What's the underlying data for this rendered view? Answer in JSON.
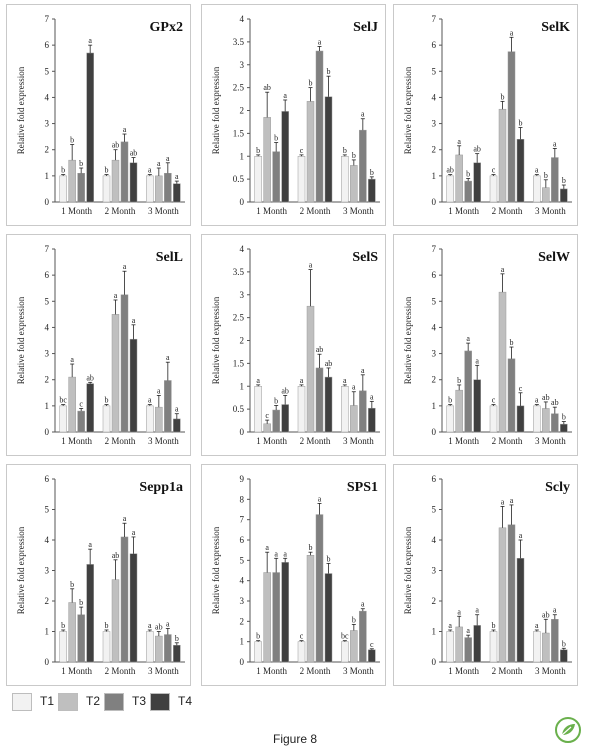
{
  "figure_caption": "Figure 8",
  "colors": {
    "T1": "#f2f2f2",
    "T2": "#bfbfbf",
    "T3": "#808080",
    "T4": "#404040",
    "axis": "#555555",
    "logo": "#6ab04c"
  },
  "legend": [
    {
      "label": "T1",
      "color": "#f2f2f2"
    },
    {
      "label": "T2",
      "color": "#bfbfbf"
    },
    {
      "label": "T3",
      "color": "#808080"
    },
    {
      "label": "T4",
      "color": "#404040"
    }
  ],
  "logo_icon": "leaf-logo-icon",
  "chart_data": [
    {
      "type": "bar",
      "title": "GPx2",
      "ylabel": "Relative fold expression",
      "categories": [
        "1 Month",
        "2 Month",
        "3 Month"
      ],
      "ylim": [
        0,
        7
      ],
      "yticks": [
        0,
        1,
        2,
        3,
        4,
        5,
        6,
        7
      ],
      "series": [
        {
          "name": "T1",
          "values": [
            1,
            1,
            1
          ],
          "errors": [
            0.05,
            0.05,
            0.05
          ],
          "letters": [
            "b",
            "b",
            "a"
          ]
        },
        {
          "name": "T2",
          "values": [
            1.6,
            1.6,
            1.0
          ],
          "errors": [
            0.6,
            0.4,
            0.3
          ],
          "letters": [
            "b",
            "ab",
            "a"
          ]
        },
        {
          "name": "T3",
          "values": [
            1.1,
            2.3,
            1.1
          ],
          "errors": [
            0.2,
            0.3,
            0.4
          ],
          "letters": [
            "b",
            "a",
            "a"
          ]
        },
        {
          "name": "T4",
          "values": [
            5.7,
            1.5,
            0.7
          ],
          "errors": [
            0.3,
            0.2,
            0.1
          ],
          "letters": [
            "a",
            "ab",
            "a"
          ]
        }
      ]
    },
    {
      "type": "bar",
      "title": "SelJ",
      "ylabel": "Relative fold expression",
      "categories": [
        "1 Month",
        "2 Month",
        "3 Month"
      ],
      "ylim": [
        0,
        4
      ],
      "yticks": [
        0,
        0.5,
        1,
        1.5,
        2,
        2.5,
        3,
        3.5,
        4
      ],
      "series": [
        {
          "name": "T1",
          "values": [
            1,
            1,
            1
          ],
          "errors": [
            0.03,
            0.03,
            0.03
          ],
          "letters": [
            "b",
            "c",
            "b"
          ]
        },
        {
          "name": "T2",
          "values": [
            1.85,
            2.2,
            0.8
          ],
          "errors": [
            0.55,
            0.3,
            0.12
          ],
          "letters": [
            "ab",
            "b",
            "b"
          ]
        },
        {
          "name": "T3",
          "values": [
            1.1,
            3.3,
            1.57
          ],
          "errors": [
            0.2,
            0.1,
            0.25
          ],
          "letters": [
            "b",
            "a",
            "a"
          ]
        },
        {
          "name": "T4",
          "values": [
            1.98,
            2.3,
            0.5
          ],
          "errors": [
            0.25,
            0.45,
            0.05
          ],
          "letters": [
            "a",
            "b",
            "b"
          ]
        }
      ]
    },
    {
      "type": "bar",
      "title": "SelK",
      "ylabel": "Relative fold expression",
      "categories": [
        "1 Month",
        "2 Month",
        "3 Month"
      ],
      "ylim": [
        0,
        7
      ],
      "yticks": [
        0,
        1,
        2,
        3,
        4,
        5,
        6,
        7
      ],
      "series": [
        {
          "name": "T1",
          "values": [
            1,
            1,
            1
          ],
          "errors": [
            0.05,
            0.05,
            0.05
          ],
          "letters": [
            "ab",
            "c",
            "a"
          ]
        },
        {
          "name": "T2",
          "values": [
            1.8,
            3.55,
            0.55
          ],
          "errors": [
            0.35,
            0.3,
            0.3
          ],
          "letters": [
            "a",
            "b",
            "b"
          ]
        },
        {
          "name": "T3",
          "values": [
            0.8,
            5.75,
            1.7
          ],
          "errors": [
            0.1,
            0.55,
            0.35
          ],
          "letters": [
            "b",
            "a",
            "a"
          ]
        },
        {
          "name": "T4",
          "values": [
            1.5,
            2.4,
            0.5
          ],
          "errors": [
            0.35,
            0.45,
            0.15
          ],
          "letters": [
            "ab",
            "b",
            "b"
          ]
        }
      ]
    },
    {
      "type": "bar",
      "title": "SelL",
      "ylabel": "Relative fold expression",
      "categories": [
        "1 Month",
        "2 Month",
        "3 Month"
      ],
      "ylim": [
        0,
        7
      ],
      "yticks": [
        0,
        1,
        2,
        3,
        4,
        5,
        6,
        7
      ],
      "series": [
        {
          "name": "T1",
          "values": [
            1,
            1,
            1
          ],
          "errors": [
            0.05,
            0.05,
            0.05
          ],
          "letters": [
            "bc",
            "b",
            "a"
          ]
        },
        {
          "name": "T2",
          "values": [
            2.1,
            4.5,
            0.95
          ],
          "errors": [
            0.5,
            0.55,
            0.45
          ],
          "letters": [
            "a",
            "a",
            "a"
          ]
        },
        {
          "name": "T3",
          "values": [
            0.8,
            5.25,
            1.97
          ],
          "errors": [
            0.1,
            0.9,
            0.7
          ],
          "letters": [
            "c",
            "a",
            "a"
          ]
        },
        {
          "name": "T4",
          "values": [
            1.85,
            3.55,
            0.5
          ],
          "errors": [
            0.05,
            0.55,
            0.2
          ],
          "letters": [
            "ab",
            "a",
            "a"
          ]
        }
      ]
    },
    {
      "type": "bar",
      "title": "SelS",
      "ylabel": "Relative fold expression",
      "categories": [
        "1 Month",
        "2 Month",
        "3 Month"
      ],
      "ylim": [
        0,
        4
      ],
      "yticks": [
        0,
        0.5,
        1,
        1.5,
        2,
        2.5,
        3,
        3.5,
        4
      ],
      "series": [
        {
          "name": "T1",
          "values": [
            1,
            1,
            1
          ],
          "errors": [
            0.03,
            0.03,
            0.03
          ],
          "letters": [
            "a",
            "a",
            "a"
          ]
        },
        {
          "name": "T2",
          "values": [
            0.18,
            2.75,
            0.58
          ],
          "errors": [
            0.08,
            0.8,
            0.3
          ],
          "letters": [
            "c",
            "a",
            "a"
          ]
        },
        {
          "name": "T3",
          "values": [
            0.48,
            1.4,
            0.9
          ],
          "errors": [
            0.1,
            0.3,
            0.35
          ],
          "letters": [
            "b",
            "ab",
            "a"
          ]
        },
        {
          "name": "T4",
          "values": [
            0.6,
            1.2,
            0.52
          ],
          "errors": [
            0.2,
            0.2,
            0.15
          ],
          "letters": [
            "ab",
            "ab",
            "a"
          ]
        }
      ]
    },
    {
      "type": "bar",
      "title": "SelW",
      "ylabel": "Relative fold expression",
      "categories": [
        "1 Month",
        "2 Month",
        "3 Month"
      ],
      "ylim": [
        0,
        7
      ],
      "yticks": [
        0,
        1,
        2,
        3,
        4,
        5,
        6,
        7
      ],
      "series": [
        {
          "name": "T1",
          "values": [
            1,
            1,
            1
          ],
          "errors": [
            0.05,
            0.05,
            0.05
          ],
          "letters": [
            "b",
            "c",
            "a"
          ]
        },
        {
          "name": "T2",
          "values": [
            1.6,
            5.35,
            0.9
          ],
          "errors": [
            0.2,
            0.7,
            0.25
          ],
          "letters": [
            "b",
            "a",
            "ab"
          ]
        },
        {
          "name": "T3",
          "values": [
            3.1,
            2.8,
            0.7
          ],
          "errors": [
            0.3,
            0.45,
            0.25
          ],
          "letters": [
            "a",
            "b",
            "ab"
          ]
        },
        {
          "name": "T4",
          "values": [
            2.0,
            1.0,
            0.3
          ],
          "errors": [
            0.55,
            0.5,
            0.1
          ],
          "letters": [
            "a",
            "c",
            "b"
          ]
        }
      ]
    },
    {
      "type": "bar",
      "title": "Sepp1a",
      "ylabel": "Relative fold expression",
      "categories": [
        "1 Month",
        "2 Month",
        "3 Month"
      ],
      "ylim": [
        0,
        6
      ],
      "yticks": [
        0,
        1,
        2,
        3,
        4,
        5,
        6
      ],
      "series": [
        {
          "name": "T1",
          "values": [
            1,
            1,
            1
          ],
          "errors": [
            0.05,
            0.05,
            0.05
          ],
          "letters": [
            "b",
            "b",
            "a"
          ]
        },
        {
          "name": "T2",
          "values": [
            1.95,
            2.7,
            0.85
          ],
          "errors": [
            0.45,
            0.65,
            0.15
          ],
          "letters": [
            "b",
            "ab",
            "ab"
          ]
        },
        {
          "name": "T3",
          "values": [
            1.55,
            4.1,
            0.9
          ],
          "errors": [
            0.25,
            0.45,
            0.2
          ],
          "letters": [
            "b",
            "a",
            "a"
          ]
        },
        {
          "name": "T4",
          "values": [
            3.2,
            3.55,
            0.55
          ],
          "errors": [
            0.5,
            0.55,
            0.08
          ],
          "letters": [
            "a",
            "a",
            "b"
          ]
        }
      ]
    },
    {
      "type": "bar",
      "title": "SPS1",
      "ylabel": "Relative fold expression",
      "categories": [
        "1 Month",
        "2 Month",
        "3 Month"
      ],
      "ylim": [
        0,
        9
      ],
      "yticks": [
        0,
        1,
        2,
        3,
        4,
        5,
        6,
        7,
        8,
        9
      ],
      "series": [
        {
          "name": "T1",
          "values": [
            1,
            1,
            1
          ],
          "errors": [
            0.05,
            0.05,
            0.05
          ],
          "letters": [
            "b",
            "c",
            "bc"
          ]
        },
        {
          "name": "T2",
          "values": [
            4.4,
            5.25,
            1.55
          ],
          "errors": [
            1.0,
            0.15,
            0.3
          ],
          "letters": [
            "a",
            "b",
            "b"
          ]
        },
        {
          "name": "T3",
          "values": [
            4.4,
            7.25,
            2.5
          ],
          "errors": [
            0.7,
            0.55,
            0.12
          ],
          "letters": [
            "a",
            "a",
            "a"
          ]
        },
        {
          "name": "T4",
          "values": [
            4.9,
            4.35,
            0.6
          ],
          "errors": [
            0.2,
            0.5,
            0.05
          ],
          "letters": [
            "a",
            "b",
            "c"
          ]
        }
      ]
    },
    {
      "type": "bar",
      "title": "Scly",
      "ylabel": "Relative fold expression",
      "categories": [
        "1 Month",
        "2 Month",
        "3 Month"
      ],
      "ylim": [
        0,
        6
      ],
      "yticks": [
        0,
        1,
        2,
        3,
        4,
        5,
        6
      ],
      "series": [
        {
          "name": "T1",
          "values": [
            1,
            1,
            1
          ],
          "errors": [
            0.05,
            0.05,
            0.05
          ],
          "letters": [
            "a",
            "b",
            "a"
          ]
        },
        {
          "name": "T2",
          "values": [
            1.15,
            4.4,
            0.95
          ],
          "errors": [
            0.35,
            0.7,
            0.45
          ],
          "letters": [
            "a",
            "a",
            "ab"
          ]
        },
        {
          "name": "T3",
          "values": [
            0.8,
            4.5,
            1.4
          ],
          "errors": [
            0.08,
            0.65,
            0.15
          ],
          "letters": [
            "a",
            "a",
            "a"
          ]
        },
        {
          "name": "T4",
          "values": [
            1.2,
            3.4,
            0.4
          ],
          "errors": [
            0.35,
            0.6,
            0.05
          ],
          "letters": [
            "a",
            "a",
            "b"
          ]
        }
      ]
    }
  ]
}
